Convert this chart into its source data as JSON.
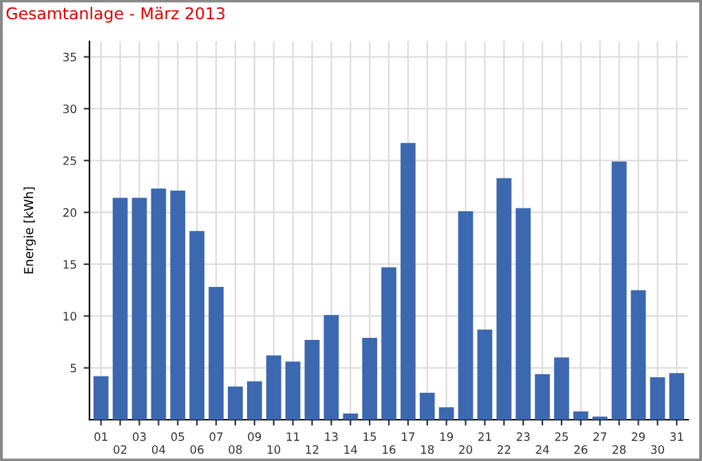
{
  "chart_data": {
    "type": "bar",
    "title": "Gesamtanlage - März 2013",
    "ylabel": "Energie [kWh]",
    "categories": [
      "01",
      "02",
      "03",
      "04",
      "05",
      "06",
      "07",
      "08",
      "09",
      "10",
      "11",
      "12",
      "13",
      "14",
      "15",
      "16",
      "17",
      "18",
      "19",
      "20",
      "21",
      "22",
      "23",
      "24",
      "25",
      "26",
      "27",
      "28",
      "29",
      "30",
      "31"
    ],
    "values": [
      4.2,
      21.4,
      21.4,
      22.3,
      22.1,
      18.2,
      12.8,
      3.2,
      3.7,
      6.2,
      5.6,
      7.7,
      10.1,
      0.6,
      7.9,
      14.7,
      26.7,
      2.6,
      1.2,
      20.1,
      8.7,
      23.3,
      20.4,
      4.4,
      6.0,
      0.8,
      0.3,
      24.9,
      12.5,
      4.1,
      4.5
    ],
    "color": "#3c68b0",
    "ylim": [
      0,
      36.5
    ],
    "yticks": [
      5,
      10,
      15,
      20,
      25,
      30,
      35
    ],
    "grid": true
  }
}
